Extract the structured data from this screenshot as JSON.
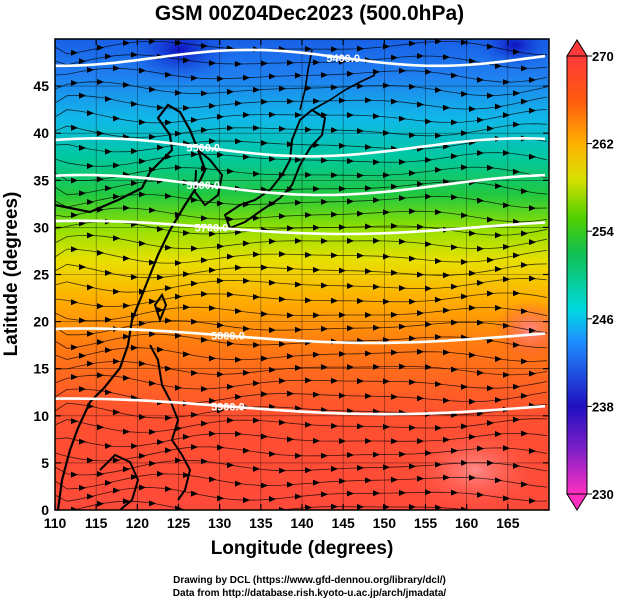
{
  "title": "GSM 00Z04Dec2023 (500.0hPa)",
  "x_axis": {
    "label": "Longitude (degrees)",
    "min": 110,
    "max": 170,
    "ticks": [
      "110",
      "115",
      "120",
      "125",
      "130",
      "135",
      "140",
      "145",
      "150",
      "155",
      "160",
      "165"
    ],
    "tick_values": [
      110,
      115,
      120,
      125,
      130,
      135,
      140,
      145,
      150,
      155,
      160,
      165
    ]
  },
  "y_axis": {
    "label": "Latitude (degrees)",
    "min": 0,
    "max": 50,
    "ticks": [
      "0",
      "5",
      "10",
      "15",
      "20",
      "25",
      "30",
      "35",
      "40",
      "45"
    ],
    "tick_values": [
      0,
      5,
      10,
      15,
      20,
      25,
      30,
      35,
      40,
      45
    ]
  },
  "colorbar": {
    "min": 230,
    "max": 270,
    "labels": [
      "270",
      "262",
      "254",
      "246",
      "238",
      "230"
    ],
    "label_values": [
      270,
      262,
      254,
      246,
      238,
      230
    ]
  },
  "contours": [
    {
      "label": "5400.0",
      "lon": 145,
      "lat": 48
    },
    {
      "label": "5500.0",
      "lon": 128,
      "lat": 38.5
    },
    {
      "label": "5600.0",
      "lon": 128,
      "lat": 34.5
    },
    {
      "label": "5700.0",
      "lon": 129,
      "lat": 30
    },
    {
      "label": "5800.0",
      "lon": 131,
      "lat": 18.5
    },
    {
      "label": "5900.0",
      "lon": 131,
      "lat": 11
    }
  ],
  "credits": {
    "line1": "Drawing by DCL (https://www.gfd-dennou.org/library/dcl/)",
    "line2": "Data from http://database.rish.kyoto-u.ac.jp/arch/jmadata/"
  },
  "colors": {
    "temperature_scale": [
      "#e040c0",
      "#3010c0",
      "#1e90ff",
      "#00c8c8",
      "#00c040",
      "#a0e000",
      "#ffd000",
      "#ff8000",
      "#ff2a20",
      "#ff4040"
    ]
  }
}
